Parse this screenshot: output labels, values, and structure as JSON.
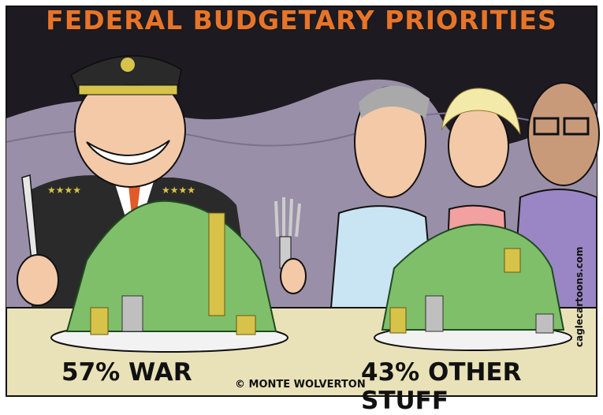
{
  "title": "FEDERAL BUDGETARY PRIORITIES",
  "left_caption": "57% WAR",
  "right_caption": "43% OTHER STUFF",
  "credit": "© MONTE WOLVERTON",
  "site": "caglecartoons.com",
  "colors": {
    "title": "#e8742a",
    "background": "#1e1a22",
    "smoke": "#9a8fa8",
    "table": "#e9e2b8",
    "money": "#7fbf6a",
    "uniform": "#2a2a2a",
    "gold": "#d8c34a"
  }
}
